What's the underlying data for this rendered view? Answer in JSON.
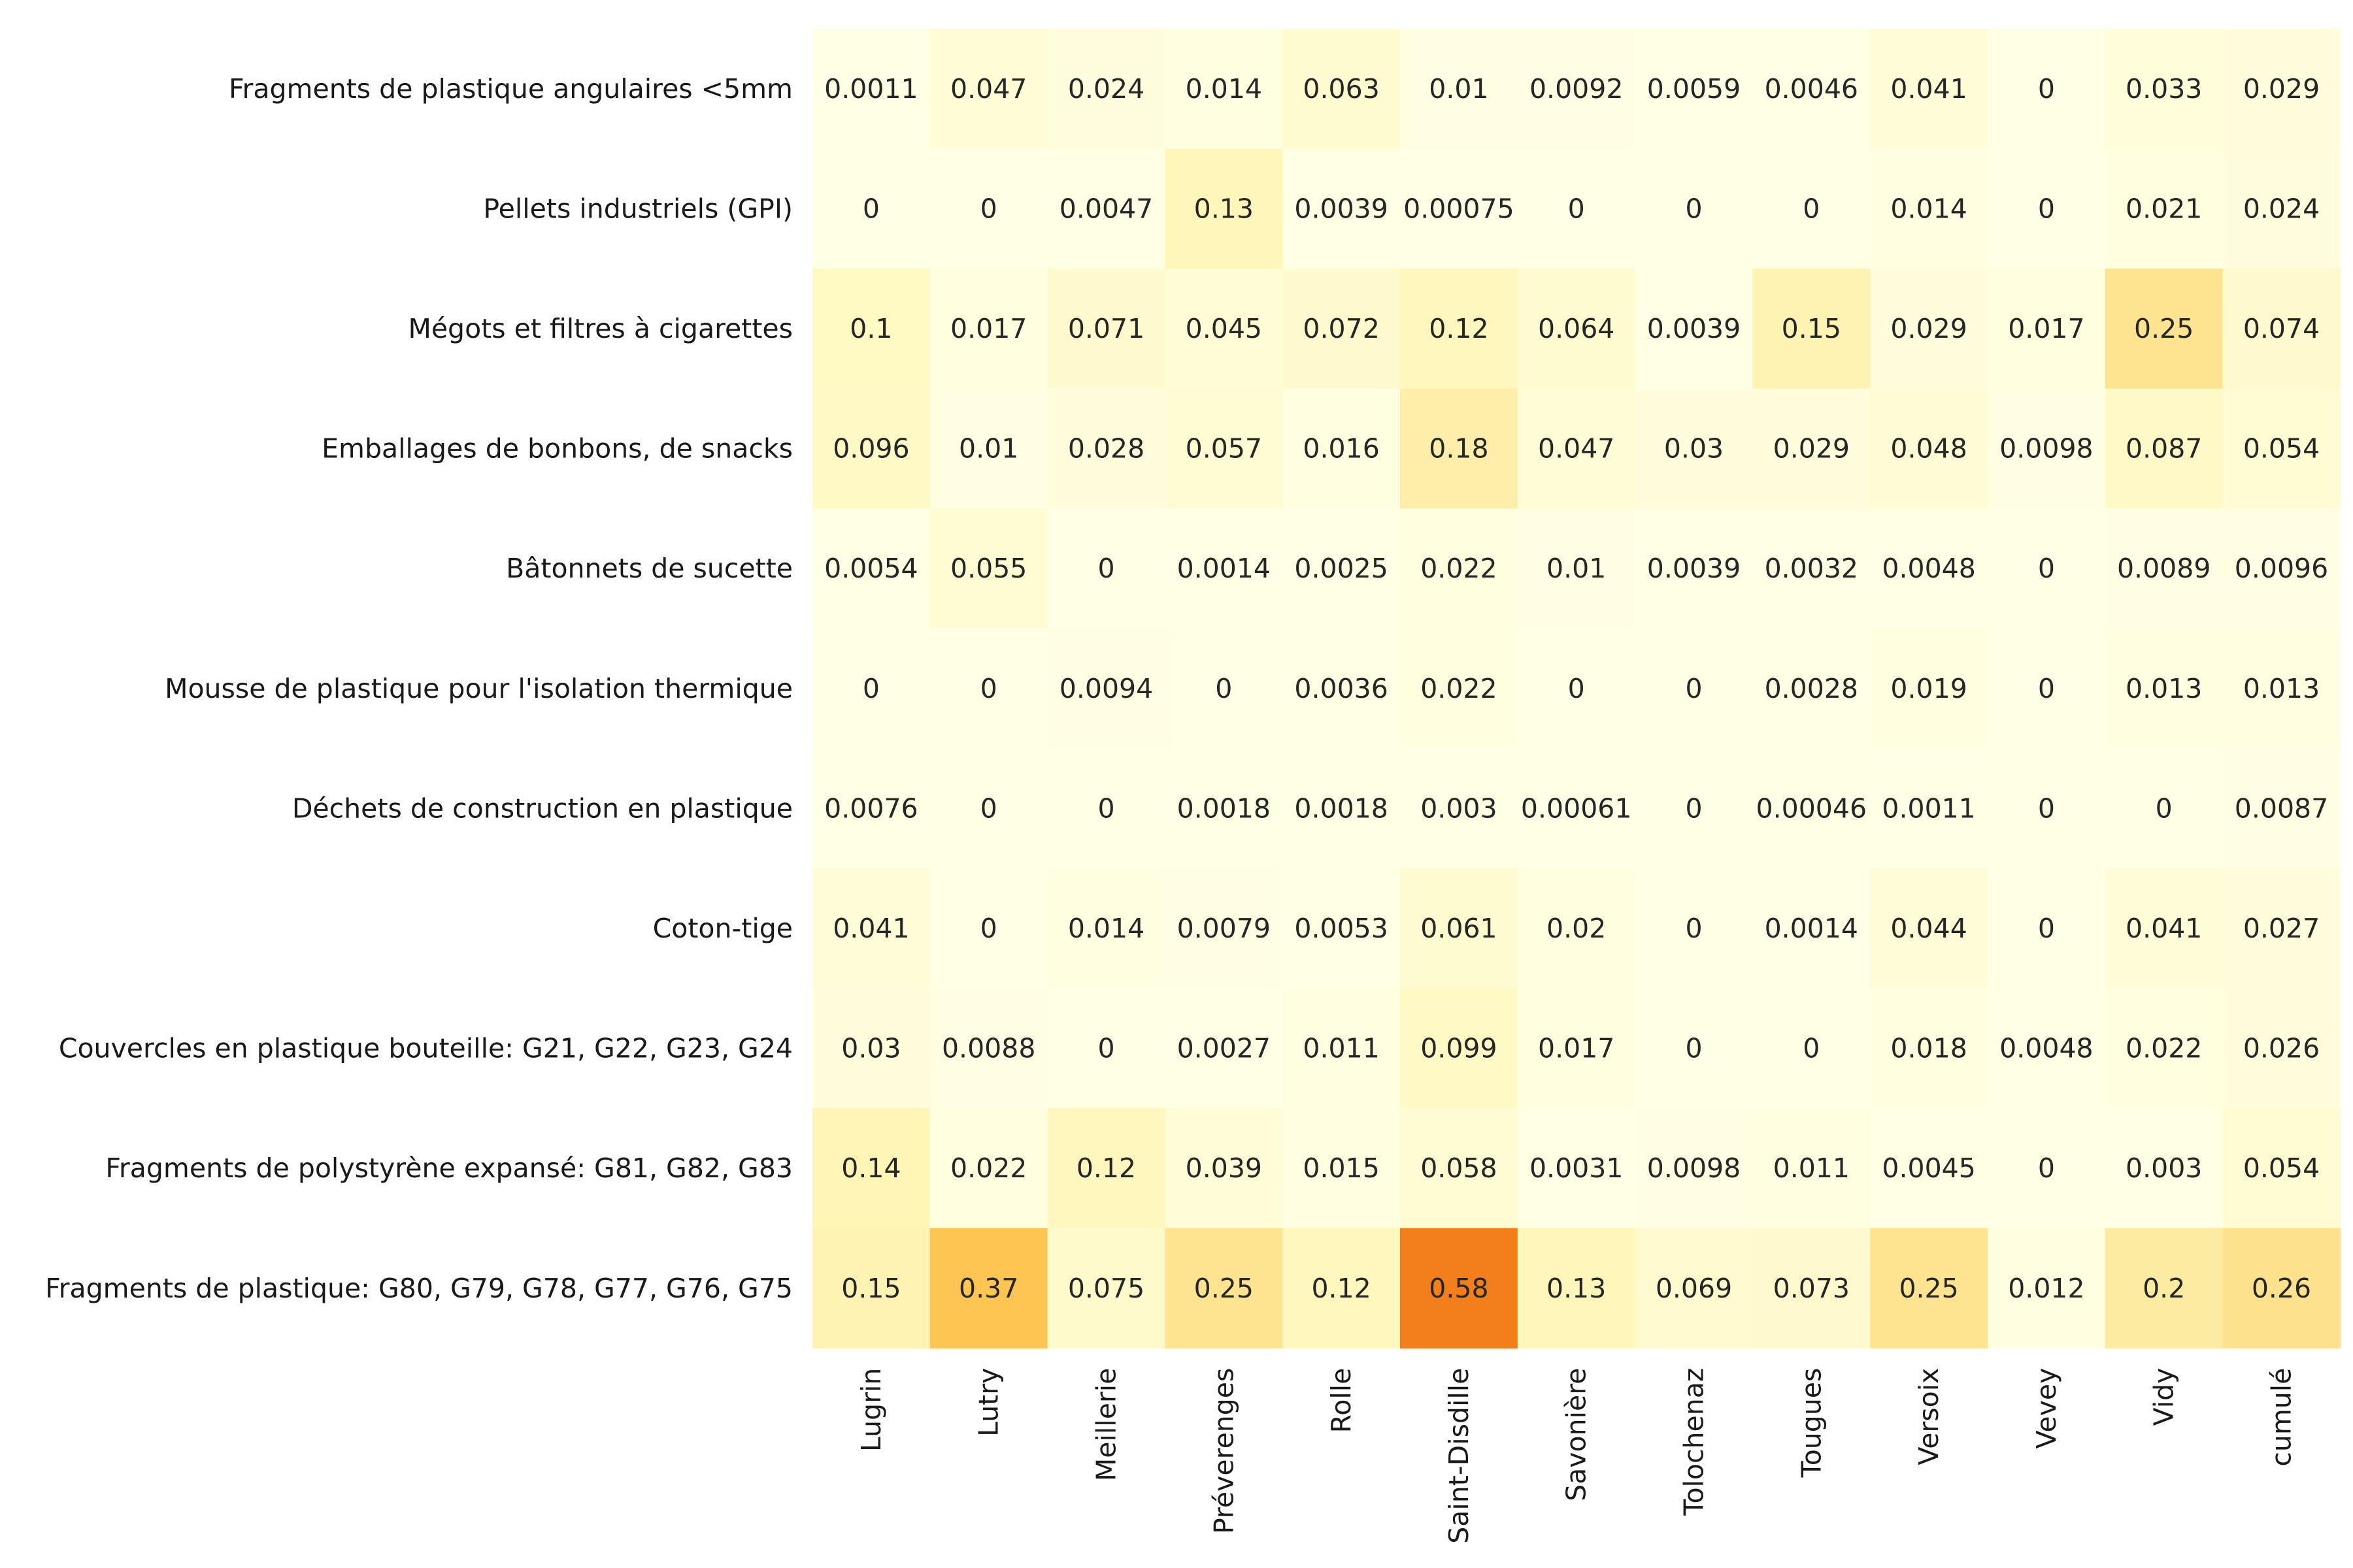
{
  "chart_data": {
    "type": "heatmap",
    "title": "",
    "xlabel": "",
    "ylabel": "",
    "colorbar": false,
    "colormap": "YlOrBr",
    "color_range": [
      0,
      1
    ],
    "rows": [
      "Fragments de plastique angulaires <5mm",
      "Pellets industriels (GPI)",
      "Mégots et filtres à cigarettes",
      "Emballages de bonbons, de snacks",
      "Bâtonnets de sucette",
      "Mousse de plastique pour l'isolation thermique",
      "Déchets de construction en plastique",
      "Coton-tige",
      "Couvercles en plastique bouteille:  G21, G22, G23, G24",
      "Fragments de polystyrène expansé: G81, G82, G83",
      "Fragments de plastique: G80, G79, G78, G77, G76, G75"
    ],
    "columns": [
      "Lugrin",
      "Lutry",
      "Meillerie",
      "Préverenges",
      "Rolle",
      "Saint-Disdille",
      "Savonière",
      "Tolochenaz",
      "Tougues",
      "Versoix",
      "Vevey",
      "Vidy",
      "cumulé"
    ],
    "values": [
      [
        0.0011,
        0.047,
        0.024,
        0.014,
        0.063,
        0.01,
        0.0092,
        0.0059,
        0.0046,
        0.041,
        0.0,
        0.033,
        0.029
      ],
      [
        0.0,
        0.0,
        0.0047,
        0.13,
        0.0039,
        0.00075,
        0.0,
        0.0,
        0.0,
        0.014,
        0.0,
        0.021,
        0.024
      ],
      [
        0.1,
        0.017,
        0.071,
        0.045,
        0.072,
        0.12,
        0.064,
        0.0039,
        0.15,
        0.029,
        0.017,
        0.25,
        0.074
      ],
      [
        0.096,
        0.01,
        0.028,
        0.057,
        0.016,
        0.18,
        0.047,
        0.03,
        0.029,
        0.048,
        0.0098,
        0.087,
        0.054
      ],
      [
        0.0054,
        0.055,
        0.0,
        0.0014,
        0.0025,
        0.022,
        0.01,
        0.0039,
        0.0032,
        0.0048,
        0.0,
        0.0089,
        0.0096
      ],
      [
        0.0,
        0.0,
        0.0094,
        0.0,
        0.0036,
        0.022,
        0.0,
        0.0,
        0.0028,
        0.019,
        0.0,
        0.013,
        0.013
      ],
      [
        0.0076,
        0.0,
        0.0,
        0.0018,
        0.0018,
        0.003,
        0.00061,
        0.0,
        0.00046,
        0.0011,
        0.0,
        0.0,
        0.0087
      ],
      [
        0.041,
        0.0,
        0.014,
        0.0079,
        0.0053,
        0.061,
        0.02,
        0.0,
        0.0014,
        0.044,
        0.0,
        0.041,
        0.027
      ],
      [
        0.03,
        0.0088,
        0.0,
        0.0027,
        0.011,
        0.099,
        0.017,
        0.0,
        0.0,
        0.018,
        0.0048,
        0.022,
        0.026
      ],
      [
        0.14,
        0.022,
        0.12,
        0.039,
        0.015,
        0.058,
        0.0031,
        0.0098,
        0.011,
        0.0045,
        0.0,
        0.003,
        0.054
      ],
      [
        0.15,
        0.37,
        0.075,
        0.25,
        0.12,
        0.58,
        0.13,
        0.069,
        0.073,
        0.25,
        0.012,
        0.2,
        0.26
      ]
    ]
  }
}
